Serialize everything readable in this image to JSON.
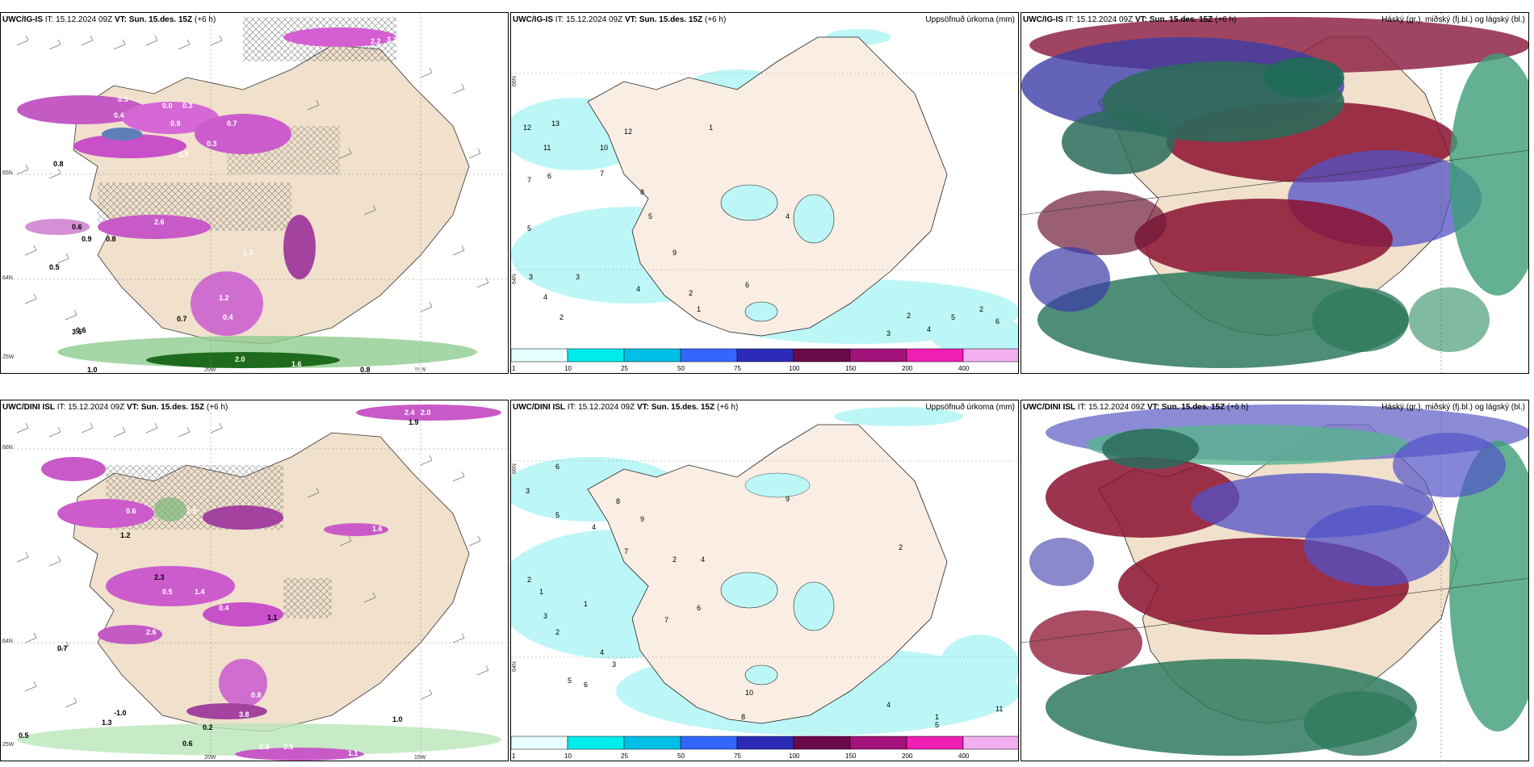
{
  "panels": [
    {
      "id": "igis-wind",
      "title_model": "UWC/IG-IS",
      "title_it": " IT: 15.12.2024 09Z ",
      "title_vt_label": "VT:",
      "title_vt": " Sun. 15.des. 15Z",
      "title_lead": " (+6 h)",
      "title_right": "",
      "grid_labels": [
        "20W",
        "15W",
        "65N",
        "64N",
        "25W"
      ],
      "values": [
        "2.2",
        "3.2",
        "0.5",
        "0.0",
        "0.3",
        "0.4",
        "0.9",
        "0.3",
        "0.7",
        "1.9",
        "0.8",
        "0.6",
        "1.4",
        "0.9",
        "0.8",
        "2.6",
        "0.5",
        "0.7",
        "1.2",
        "0.4",
        "0.6",
        "1.3",
        "1.0",
        "3.6",
        "2.0",
        "1.6",
        "0.8",
        "1.8"
      ]
    },
    {
      "id": "igis-precip",
      "title_model": "UWC/IG-IS",
      "title_it": " IT: 15.12.2024 09Z ",
      "title_vt_label": "VT:",
      "title_vt": " Sun. 15.des. 15Z",
      "title_lead": " (+6 h)",
      "title_right": "Uppsöfnuð úrkoma (mm)",
      "grid_labels": [
        "66N",
        "64N"
      ],
      "values": [
        "12",
        "13",
        "11",
        "10",
        "12",
        "7",
        "6",
        "5",
        "3",
        "4",
        "2",
        "1",
        "8",
        "9",
        "3",
        "5",
        "4",
        "2",
        "1",
        "6",
        "4",
        "3",
        "2",
        "4",
        "5",
        "6",
        "7",
        "2"
      ],
      "colorbar": [
        "1",
        "10",
        "25",
        "50",
        "75",
        "100",
        "150",
        "200",
        "400"
      ]
    },
    {
      "id": "igis-cloud",
      "title_model": "UWC/IG-IS",
      "title_it": " IT: 15.12.2024 09Z ",
      "title_vt_label": "VT:",
      "title_vt": " Sun. 15.des. 15Z",
      "title_lead": " (+6 h)",
      "title_right": "Háský (gr.), miðský (fj.bl.) og lágský (bl.)"
    },
    {
      "id": "dini-wind",
      "title_model": "UWC/DINI ISL",
      "title_it": " IT: 15.12.2024 09Z ",
      "title_vt_label": "VT:",
      "title_vt": " Sun. 15.des. 15Z",
      "title_lead": " (+6 h)",
      "title_right": "",
      "grid_labels": [
        "20W",
        "15W",
        "66N",
        "64N",
        "25W"
      ],
      "values": [
        "2.4",
        "2.0",
        "1.9",
        "2.7",
        "1.5",
        "0.6",
        "1.2",
        "2.3",
        "0.5",
        "1.4",
        "0.4",
        "1.1",
        "2.6",
        "1.6",
        "0.7",
        "0.8",
        "3.8",
        "1.3",
        "-1.0",
        "0.2",
        "0.6",
        "0.5",
        "1.0",
        "3.5",
        "2.8",
        "1.1"
      ]
    },
    {
      "id": "dini-precip",
      "title_model": "UWC/DINI ISL",
      "title_it": " IT: 15.12.2024 09Z ",
      "title_vt_label": "VT:",
      "title_vt": " Sun. 15.des. 15Z",
      "title_lead": " (+6 h)",
      "title_right": "Uppsöfnuð úrkoma (mm)",
      "grid_labels": [
        "66N",
        "64N"
      ],
      "values": [
        "6",
        "3",
        "1",
        "2",
        "5",
        "4",
        "7",
        "8",
        "9",
        "3",
        "2",
        "1",
        "5",
        "6",
        "4",
        "3",
        "2",
        "4",
        "5",
        "11",
        "6",
        "8",
        "10",
        "7",
        "9",
        "4",
        "2",
        "1"
      ],
      "colorbar": [
        "1",
        "10",
        "25",
        "50",
        "75",
        "100",
        "150",
        "200",
        "400"
      ]
    },
    {
      "id": "dini-cloud",
      "title_model": "UWC/DINI ISL",
      "title_it": " IT: 15.12.2024 09Z ",
      "title_vt_label": "VT:",
      "title_vt": " Sun. 15.des. 15Z",
      "title_lead": " (+6 h)",
      "title_right": "Háský (gr.), miðský (fj.bl.) og lágský (bl.)"
    }
  ],
  "colorbar_colors": [
    "#e6ffff",
    "#00ebeb",
    "#00bfe6",
    "#3366ff",
    "#2b2bb8",
    "#6b0a4a",
    "#a3127a",
    "#f01eb4",
    "#f2b0f0"
  ]
}
